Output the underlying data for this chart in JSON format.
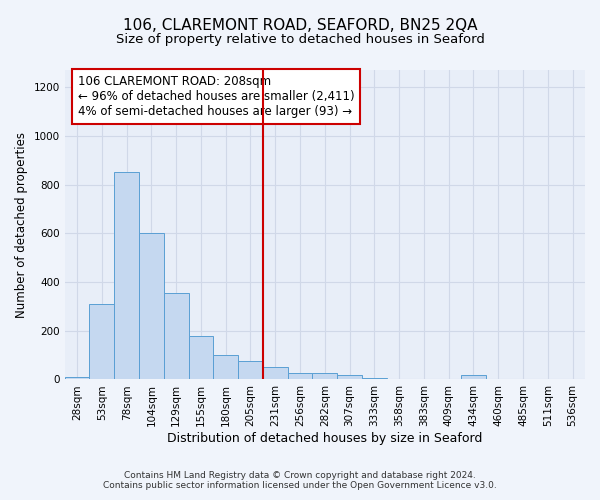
{
  "title": "106, CLAREMONT ROAD, SEAFORD, BN25 2QA",
  "subtitle": "Size of property relative to detached houses in Seaford",
  "xlabel": "Distribution of detached houses by size in Seaford",
  "ylabel": "Number of detached properties",
  "footer_line1": "Contains HM Land Registry data © Crown copyright and database right 2024.",
  "footer_line2": "Contains public sector information licensed under the Open Government Licence v3.0.",
  "bar_labels": [
    "28sqm",
    "53sqm",
    "78sqm",
    "104sqm",
    "129sqm",
    "155sqm",
    "180sqm",
    "205sqm",
    "231sqm",
    "256sqm",
    "282sqm",
    "307sqm",
    "333sqm",
    "358sqm",
    "383sqm",
    "409sqm",
    "434sqm",
    "460sqm",
    "485sqm",
    "511sqm",
    "536sqm"
  ],
  "bar_values": [
    10,
    310,
    850,
    600,
    355,
    180,
    100,
    75,
    50,
    25,
    25,
    18,
    5,
    0,
    0,
    0,
    18,
    0,
    0,
    0,
    0
  ],
  "bar_color": "#c5d8f0",
  "bar_edgecolor": "#5a9fd4",
  "vline_x_index": 7.5,
  "vline_color": "#cc0000",
  "annotation_text": "106 CLAREMONT ROAD: 208sqm\n← 96% of detached houses are smaller (2,411)\n4% of semi-detached houses are larger (93) →",
  "annotation_box_color": "#cc0000",
  "ylim": [
    0,
    1270
  ],
  "yticks": [
    0,
    200,
    400,
    600,
    800,
    1000,
    1200
  ],
  "background_color": "#f0f4fb",
  "plot_bg_color": "#e8eef8",
  "grid_color": "#d0d8e8",
  "title_fontsize": 11,
  "subtitle_fontsize": 9.5,
  "xlabel_fontsize": 9,
  "ylabel_fontsize": 8.5,
  "tick_fontsize": 7.5,
  "annotation_fontsize": 8.5,
  "footer_fontsize": 6.5
}
